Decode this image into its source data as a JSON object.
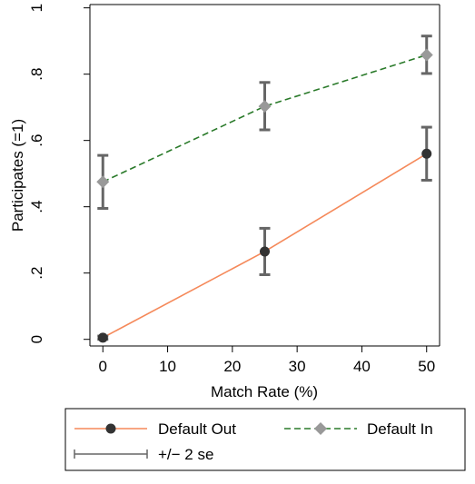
{
  "chart_data": {
    "type": "line",
    "xlabel": "Match Rate (%)",
    "ylabel": "Participates (=1)",
    "xlim": [
      -2,
      52
    ],
    "ylim": [
      -0.02,
      1.01
    ],
    "x_ticks": [
      0,
      10,
      20,
      30,
      40,
      50
    ],
    "x_tick_labels": [
      "0",
      "10",
      "20",
      "30",
      "40",
      "50"
    ],
    "y_ticks": [
      0,
      0.2,
      0.4,
      0.6,
      0.8,
      1
    ],
    "y_tick_labels": [
      "0",
      ".2",
      ".4",
      ".6",
      ".8",
      "1"
    ],
    "grid": false,
    "legend_position": "bottom",
    "legend_error_label": "+/− 2 se",
    "series": [
      {
        "name": "Default Out",
        "x": [
          0,
          25,
          50
        ],
        "y": [
          0.005,
          0.265,
          0.56
        ],
        "ci_low": [
          0.0,
          0.195,
          0.48
        ],
        "ci_high": [
          0.01,
          0.335,
          0.64
        ],
        "line_color": "#f5895a",
        "line_style": "solid",
        "marker": "circle",
        "marker_color": "#333333"
      },
      {
        "name": "Default In",
        "x": [
          0,
          25,
          50
        ],
        "y": [
          0.475,
          0.703,
          0.858
        ],
        "ci_low": [
          0.395,
          0.632,
          0.802
        ],
        "ci_high": [
          0.555,
          0.775,
          0.915
        ],
        "line_color": "#2a7a2a",
        "line_style": "dashed",
        "marker": "diamond",
        "marker_color": "#999999"
      }
    ],
    "error_bar_color": "#666666"
  }
}
